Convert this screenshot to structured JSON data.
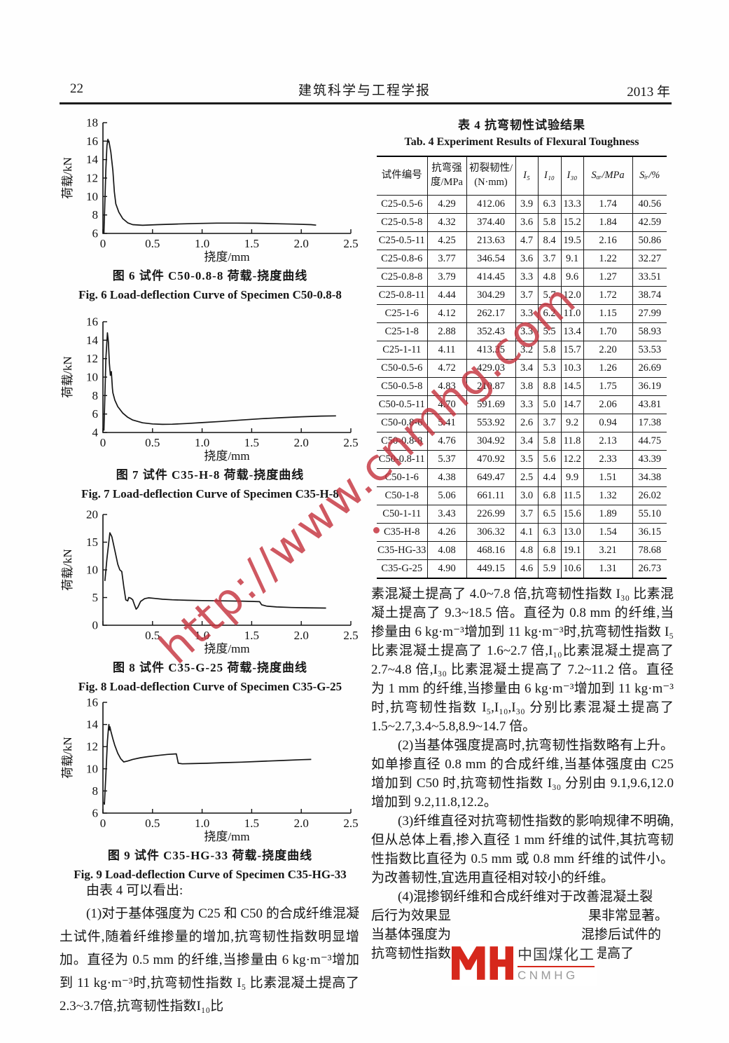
{
  "header": {
    "page_number": "22",
    "journal_title": "建筑科学与工程学报",
    "year": "2013 年"
  },
  "chart_data": [
    {
      "type": "line",
      "title_zh": "图 6  试件 C50-0.8-8 荷载-挠度曲线",
      "title_en": "Fig. 6  Load-deflection Curve of Specimen C50-0.8-8",
      "xlabel": "挠度/mm",
      "ylabel": "荷载/kN",
      "xlim": [
        0,
        2.5
      ],
      "ylim": [
        6,
        18
      ],
      "xtick_labels": [
        "0",
        "0.5",
        "1.0",
        "1.5",
        "2.0",
        "2.5"
      ],
      "yticks": [
        6,
        8,
        10,
        12,
        14,
        16,
        18
      ],
      "show_x0": true,
      "points": [
        [
          0.01,
          6.0
        ],
        [
          0.02,
          9.5
        ],
        [
          0.03,
          13.0
        ],
        [
          0.04,
          15.5
        ],
        [
          0.05,
          16.2
        ],
        [
          0.055,
          15.9
        ],
        [
          0.06,
          16.0
        ],
        [
          0.08,
          14.8
        ],
        [
          0.1,
          12.8
        ],
        [
          0.115,
          10.5
        ],
        [
          0.13,
          9.2
        ],
        [
          0.16,
          8.3
        ],
        [
          0.2,
          7.6
        ],
        [
          0.25,
          7.15
        ],
        [
          0.3,
          6.95
        ],
        [
          0.4,
          6.88
        ],
        [
          0.55,
          6.95
        ],
        [
          0.75,
          7.02
        ],
        [
          0.95,
          7.08
        ],
        [
          1.15,
          7.12
        ],
        [
          1.35,
          7.12
        ],
        [
          1.55,
          7.1
        ],
        [
          1.75,
          7.05
        ],
        [
          1.95,
          7.0
        ],
        [
          2.1,
          6.95
        ],
        [
          2.15,
          6.9
        ]
      ]
    },
    {
      "type": "line",
      "title_zh": "图 7  试件 C35-H-8 荷载-挠度曲线",
      "title_en": "Fig. 7  Load-deflection Curve of Specimen C35-H-8",
      "xlabel": "挠度/mm",
      "ylabel": "荷载/kN",
      "xlim": [
        0,
        2.5
      ],
      "ylim": [
        4,
        16
      ],
      "xtick_labels": [
        "0",
        "0.5",
        "1.0",
        "1.5",
        "2.0",
        "2.5"
      ],
      "yticks": [
        4,
        6,
        8,
        10,
        12,
        14,
        16
      ],
      "show_x0": true,
      "points": [
        [
          0.01,
          4.2
        ],
        [
          0.02,
          8.0
        ],
        [
          0.03,
          12.0
        ],
        [
          0.045,
          14.8
        ],
        [
          0.055,
          13.8
        ],
        [
          0.065,
          11.5
        ],
        [
          0.075,
          10.2
        ],
        [
          0.085,
          10.6
        ],
        [
          0.095,
          8.8
        ],
        [
          0.1,
          8.3
        ],
        [
          0.12,
          7.5
        ],
        [
          0.15,
          6.8
        ],
        [
          0.2,
          6.1
        ],
        [
          0.25,
          5.65
        ],
        [
          0.3,
          5.35
        ],
        [
          0.4,
          5.05
        ],
        [
          0.5,
          4.93
        ],
        [
          0.6,
          4.88
        ],
        [
          0.7,
          4.9
        ],
        [
          0.85,
          4.97
        ],
        [
          1.0,
          5.07
        ],
        [
          1.2,
          5.2
        ],
        [
          1.4,
          5.35
        ],
        [
          1.6,
          5.5
        ],
        [
          1.8,
          5.6
        ],
        [
          2.0,
          5.7
        ],
        [
          2.2,
          5.78
        ],
        [
          2.35,
          5.8
        ]
      ]
    },
    {
      "type": "line",
      "title_zh": "图 8  试件 C35-G-25 荷载-挠度曲线",
      "title_en": "Fig. 8  Load-deflection Curve of Specimen C35-G-25",
      "xlabel": "挠度/mm",
      "ylabel": "荷载/kN",
      "xlim": [
        0,
        2.5
      ],
      "ylim": [
        0,
        20
      ],
      "xtick_labels": [
        "0",
        "0.5",
        "1.0",
        "1.5",
        "2.0",
        "2.5"
      ],
      "yticks": [
        0,
        5,
        10,
        15,
        20
      ],
      "show_x0": false,
      "points": [
        [
          0.02,
          8.0
        ],
        [
          0.04,
          12.0
        ],
        [
          0.07,
          16.7
        ],
        [
          0.09,
          16.0
        ],
        [
          0.12,
          13.5
        ],
        [
          0.15,
          11.0
        ],
        [
          0.17,
          10.0
        ],
        [
          0.19,
          9.7
        ],
        [
          0.21,
          7.0
        ],
        [
          0.23,
          4.6
        ],
        [
          0.25,
          4.4
        ],
        [
          0.26,
          5.0
        ],
        [
          0.28,
          4.9
        ],
        [
          0.3,
          4.6
        ],
        [
          0.32,
          3.6
        ],
        [
          0.335,
          2.9
        ],
        [
          0.35,
          3.2
        ],
        [
          0.38,
          4.3
        ],
        [
          0.42,
          4.8
        ],
        [
          0.46,
          4.95
        ],
        [
          0.52,
          4.85
        ],
        [
          0.6,
          4.7
        ],
        [
          0.7,
          4.6
        ],
        [
          0.85,
          4.5
        ],
        [
          1.0,
          4.45
        ],
        [
          1.2,
          4.4
        ],
        [
          1.4,
          4.35
        ],
        [
          1.5,
          4.3
        ],
        [
          1.58,
          4.25
        ],
        [
          1.6,
          3.7
        ],
        [
          1.65,
          3.45
        ],
        [
          1.75,
          3.3
        ],
        [
          1.9,
          3.2
        ],
        [
          2.05,
          3.15
        ],
        [
          2.25,
          3.1
        ]
      ]
    },
    {
      "type": "line",
      "title_zh": "图 9  试件 C35-HG-33 荷载-挠度曲线",
      "title_en": "Fig. 9  Load-deflection Curve of Specimen C35-HG-33",
      "xlabel": "挠度/mm",
      "ylabel": "荷载/kN",
      "xlim": [
        0,
        2.5
      ],
      "ylim": [
        6,
        16
      ],
      "xtick_labels": [
        "0",
        "0.5",
        "1.0",
        "1.5",
        "2.0",
        "2.5"
      ],
      "yticks": [
        6,
        8,
        10,
        12,
        14,
        16
      ],
      "show_x0": true,
      "points": [
        [
          0.01,
          7.0
        ],
        [
          0.015,
          6.8
        ],
        [
          0.03,
          9.5
        ],
        [
          0.045,
          12.5
        ],
        [
          0.055,
          13.6
        ],
        [
          0.06,
          14.0
        ],
        [
          0.065,
          13.5
        ],
        [
          0.07,
          13.8
        ],
        [
          0.08,
          13.4
        ],
        [
          0.1,
          12.7
        ],
        [
          0.12,
          12.1
        ],
        [
          0.15,
          11.4
        ],
        [
          0.18,
          10.9
        ],
        [
          0.21,
          10.62
        ],
        [
          0.25,
          10.7
        ],
        [
          0.3,
          10.85
        ],
        [
          0.38,
          11.0
        ],
        [
          0.46,
          11.1
        ],
        [
          0.55,
          11.2
        ],
        [
          0.65,
          11.3
        ],
        [
          0.74,
          11.35
        ],
        [
          0.76,
          10.5
        ],
        [
          0.8,
          10.45
        ],
        [
          0.9,
          10.47
        ],
        [
          1.05,
          10.5
        ],
        [
          1.2,
          10.55
        ],
        [
          1.4,
          10.6
        ],
        [
          1.6,
          10.68
        ],
        [
          1.8,
          10.75
        ],
        [
          2.0,
          10.82
        ],
        [
          2.1,
          10.85
        ]
      ]
    }
  ],
  "table": {
    "title_zh": "表 4  抗弯韧性试验结果",
    "title_en": "Tab. 4  Experiment Results of Flexural Toughness",
    "headers": [
      "试件编号",
      "抗弯强\n度/MPa",
      "初裂韧性/\n(N·mm)",
      "I₅",
      "I₁₀",
      "I₃₀",
      "Sₐᵣ/MPa",
      "Sᵢᵣ/%"
    ],
    "rows": [
      [
        "C25-0.5-6",
        "4.29",
        "412.06",
        "3.9",
        "6.3",
        "13.3",
        "1.74",
        "40.56"
      ],
      [
        "C25-0.5-8",
        "4.32",
        "374.40",
        "3.6",
        "5.8",
        "15.2",
        "1.84",
        "42.59"
      ],
      [
        "C25-0.5-11",
        "4.25",
        "213.63",
        "4.7",
        "8.4",
        "19.5",
        "2.16",
        "50.86"
      ],
      [
        "C25-0.8-6",
        "3.77",
        "346.54",
        "3.6",
        "3.7",
        "9.1",
        "1.22",
        "32.27"
      ],
      [
        "C25-0.8-8",
        "3.79",
        "414.45",
        "3.3",
        "4.8",
        "9.6",
        "1.27",
        "33.51"
      ],
      [
        "C25-0.8-11",
        "4.44",
        "304.29",
        "3.7",
        "5.7",
        "12.0",
        "1.72",
        "38.74"
      ],
      [
        "C25-1-6",
        "4.12",
        "262.17",
        "3.3",
        "6.2",
        "11.0",
        "1.15",
        "27.99"
      ],
      [
        "C25-1-8",
        "2.88",
        "352.43",
        "3.3",
        "5.5",
        "13.4",
        "1.70",
        "58.93"
      ],
      [
        "C25-1-11",
        "4.11",
        "413.35",
        "3.2",
        "5.8",
        "15.7",
        "2.20",
        "53.53"
      ],
      [
        "C50-0.5-6",
        "4.72",
        "429.03",
        "3.4",
        "5.3",
        "10.3",
        "1.26",
        "26.69"
      ],
      [
        "C50-0.5-8",
        "4.83",
        "210.87",
        "3.8",
        "8.8",
        "14.5",
        "1.75",
        "36.19"
      ],
      [
        "C50-0.5-11",
        "4.70",
        "591.69",
        "3.3",
        "5.0",
        "14.7",
        "2.06",
        "43.81"
      ],
      [
        "C50-0.8-6",
        "5.41",
        "553.92",
        "2.6",
        "3.7",
        "9.2",
        "0.94",
        "17.38"
      ],
      [
        "C50-0.8-8",
        "4.76",
        "304.92",
        "3.4",
        "5.8",
        "11.8",
        "2.13",
        "44.75"
      ],
      [
        "C50-0.8-11",
        "5.37",
        "470.92",
        "3.5",
        "5.6",
        "12.2",
        "2.33",
        "43.39"
      ],
      [
        "C50-1-6",
        "4.38",
        "649.47",
        "2.5",
        "4.4",
        "9.9",
        "1.51",
        "34.38"
      ],
      [
        "C50-1-8",
        "5.06",
        "661.11",
        "3.0",
        "6.8",
        "11.5",
        "1.32",
        "26.02"
      ],
      [
        "C50-1-11",
        "3.43",
        "226.99",
        "3.7",
        "6.5",
        "15.6",
        "1.89",
        "55.10"
      ],
      [
        "C35-H-8",
        "4.26",
        "306.32",
        "4.1",
        "6.3",
        "13.0",
        "1.54",
        "36.15"
      ],
      [
        "C35-HG-33",
        "4.08",
        "468.16",
        "4.8",
        "6.8",
        "19.1",
        "3.21",
        "78.68"
      ],
      [
        "C35-G-25",
        "4.90",
        "449.15",
        "4.6",
        "5.9",
        "10.6",
        "1.31",
        "26.73"
      ]
    ]
  },
  "left_text": {
    "intro": "由表 4 可以看出:",
    "p1": "(1)对于基体强度为 C25 和 C50 的合成纤维混凝土试件,随着纤维掺量的增加,抗弯韧性指数明显增加。直径为 0.5 mm 的纤维,当掺量由 6 kg·m⁻³增加到 11 kg·m⁻³时,抗弯韧性指数 I₅ 比素混凝土提高了2.3~3.7倍,抗弯韧性指数I₁₀比"
  },
  "right_text": {
    "p1": "素混凝土提高了 4.0~7.8 倍,抗弯韧性指数 I₃₀ 比素混凝土提高了 9.3~18.5 倍。直径为 0.8 mm 的纤维,当掺量由 6 kg·m⁻³增加到 11 kg·m⁻³时,抗弯韧性指数 I₅ 比素混凝土提高了 1.6~2.7 倍,I₁₀比素混凝土提高了 2.7~4.8 倍,I₃₀ 比素混凝土提高了 7.2~11.2 倍。直径为 1 mm 的纤维,当掺量由 6 kg·m⁻³增加到 11 kg·m⁻³时,抗弯韧性指数 I₅,I₁₀,I₃₀ 分别比素混凝土提高了 1.5~2.7,3.4~5.8,8.9~14.7 倍。",
    "p2": "(2)当基体强度提高时,抗弯韧性指数略有上升。如单掺直径 0.8 mm 的合成纤维,当基体强度由 C25 增加到 C50 时,抗弯韧性指数 I₃₀ 分别由 9.1,9.6,12.0 增加到 9.2,11.8,12.2。",
    "p3": "(3)纤维直径对抗弯韧性指数的影响规律不明确,但从总体上看,掺入直径 1 mm 纤维的试件,其抗弯韧性指数比直径为 0.5 mm 或 0.8 mm 纤维的试件小。为改善韧性,宜选用直径相对较小的纤维。",
    "p4_line1": "(4)混掺钢纤维和合成纤维对于改善混凝土裂",
    "p4_line2_left": "后行为效果显",
    "p4_line2_right": "果非常显著。",
    "p4_line3_left": "当基体强度为",
    "p4_line3_right": "混掺后试件的",
    "p4_line4": "抗弯韧性指数 I₅,I₁₀,I₃₀ 分别比素混凝土提高了"
  },
  "watermark": {
    "text": "http://www.cnmhg.com",
    "color": "#c5343f"
  },
  "logo": {
    "cn": "中国煤化工",
    "en": "CNMHG",
    "accent_color": "#d6281c"
  }
}
